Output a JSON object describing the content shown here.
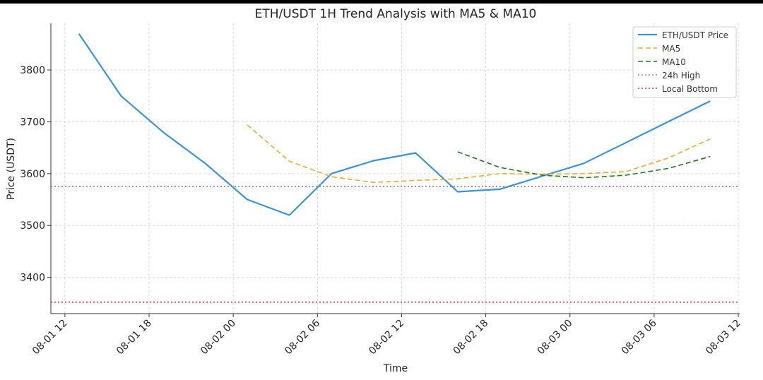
{
  "chart_data": {
    "type": "line",
    "title": "ETH/USDT 1H Trend Analysis with MA5 & MA10",
    "xlabel": "Time",
    "ylabel": "Price (USDT)",
    "x_tick_labels": [
      "08-01 12",
      "08-01 18",
      "08-02 00",
      "08-02 06",
      "08-02 12",
      "08-02 18",
      "08-03 00",
      "08-03 06",
      "08-03 12"
    ],
    "x_tick_hours": [
      0,
      6,
      12,
      18,
      24,
      30,
      36,
      42,
      48
    ],
    "xlim_hours": [
      -1.0,
      48.1
    ],
    "ylim": [
      3330,
      3890
    ],
    "y_ticks": [
      3400,
      3500,
      3600,
      3700,
      3800
    ],
    "grid": true,
    "legend_position": "top-right",
    "series": [
      {
        "name": "ETH/USDT Price",
        "color": "#3a93db",
        "style": "solid",
        "x_hours": [
          1,
          4,
          7,
          10,
          13,
          16,
          19,
          22,
          25,
          28,
          31,
          34,
          37,
          40,
          43,
          46
        ],
        "values": [
          3870,
          3750,
          3680,
          3620,
          3550,
          3520,
          3600,
          3625,
          3640,
          3565,
          3570,
          3595,
          3620,
          3660,
          3700,
          3740
        ]
      },
      {
        "name": "MA5",
        "color": "#f0aa2c",
        "style": "dashed",
        "x_hours": [
          13,
          16,
          19,
          22,
          25,
          28,
          31,
          34,
          37,
          40,
          43,
          46
        ],
        "values": [
          3694,
          3624,
          3594,
          3583,
          3587,
          3590,
          3600,
          3599,
          3600,
          3604,
          3630,
          3667
        ]
      },
      {
        "name": "MA10",
        "color": "#1e7a1e",
        "style": "dashed",
        "x_hours": [
          28,
          31,
          34,
          37,
          40,
          43,
          46
        ],
        "values": [
          3642,
          3612,
          3597,
          3592,
          3597,
          3610,
          3633
        ]
      },
      {
        "name": "24h High",
        "color": "#888888",
        "style": "dotted",
        "hline": 3575
      },
      {
        "name": "Local Bottom",
        "color": "#e0312b",
        "style": "dotted",
        "hline": 3352
      }
    ]
  }
}
